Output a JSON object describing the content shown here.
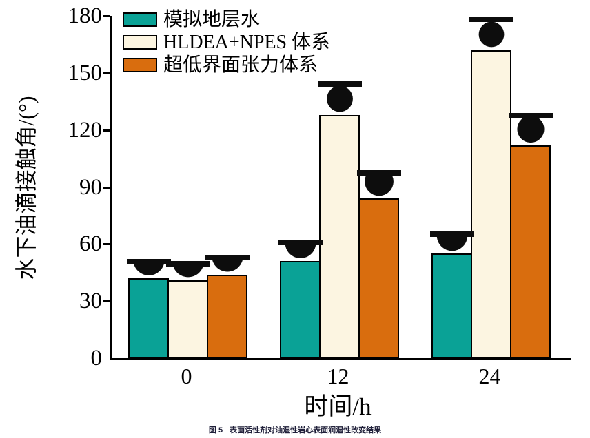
{
  "chart_data": {
    "type": "bar",
    "categories": [
      "0",
      "12",
      "24"
    ],
    "series": [
      {
        "name": "模拟地层水",
        "color": "#0aa296",
        "values": [
          42,
          51,
          55
        ]
      },
      {
        "name": "HLDEA+NPES 体系",
        "color": "#fcf5e1",
        "values": [
          41,
          128,
          162
        ]
      },
      {
        "name": "超低界面张力体系",
        "color": "#d96d0e",
        "values": [
          44,
          84,
          112
        ]
      }
    ],
    "xlabel": "时间/h",
    "ylabel": "水下油滴接触角/(°)",
    "ylim": [
      0,
      180
    ],
    "yticks": [
      0,
      30,
      60,
      90,
      120,
      150,
      180
    ],
    "grid": false,
    "legend_position": "top-left",
    "annotation": "black oil-droplet-on-substrate icon above each bar depicting the contact angle",
    "bar_border_color": "#000000",
    "droplet_color": "#0d0d0d"
  },
  "caption": {
    "label": "图 5",
    "text": "表面活性剂对油湿性岩心表面润湿性改变结果"
  }
}
